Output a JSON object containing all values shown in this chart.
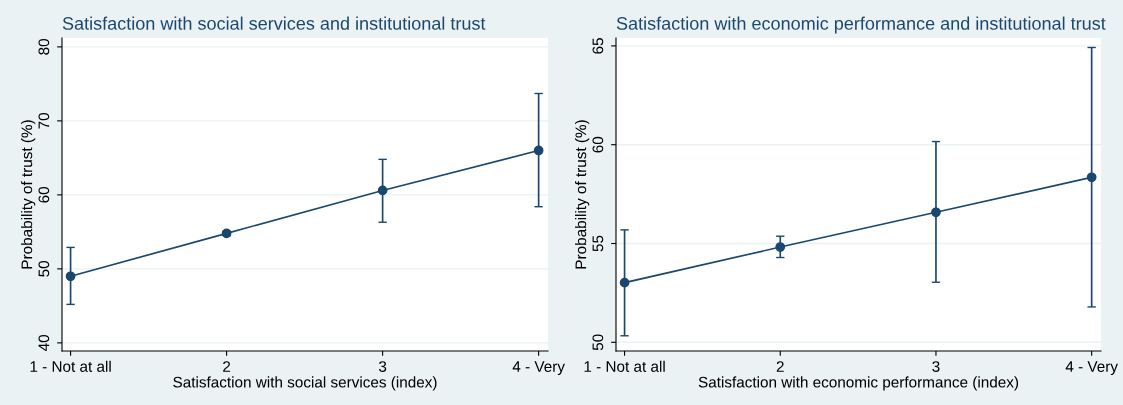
{
  "chart_data": [
    {
      "type": "line",
      "title": "Satisfaction with social services and institutional trust",
      "xlabel": "Satisfaction with social services (index)",
      "ylabel": "Probability of trust (%)",
      "categories": [
        "1 - Not at all",
        "2",
        "3",
        "4 - Very"
      ],
      "series": [
        {
          "color": "#1a476f",
          "values": [
            49.0,
            54.8,
            60.6,
            66.0
          ],
          "errors": [
            [
              45.2,
              52.9
            ],
            [
              54.5,
              55.1
            ],
            [
              56.3,
              64.8
            ],
            [
              58.4,
              73.7
            ]
          ]
        }
      ],
      "ylim": [
        38.9,
        81.2
      ],
      "yticks": [
        40,
        50,
        60,
        70,
        80
      ],
      "grid": "y",
      "marker": "circle",
      "line_style": "solid"
    },
    {
      "type": "line",
      "title": "Satisfaction with economic performance and institutional trust",
      "xlabel": "Satisfaction with economic performance (index)",
      "ylabel": "Probability of trust (%)",
      "categories": [
        "1 - Not at all",
        "2",
        "3",
        "4 - Very"
      ],
      "series": [
        {
          "color": "#1a476f",
          "values": [
            53.02,
            54.82,
            56.58,
            58.35
          ],
          "errors": [
            [
              50.33,
              55.69
            ],
            [
              54.29,
              55.37
            ],
            [
              53.04,
              60.16
            ],
            [
              51.79,
              64.92
            ]
          ]
        }
      ],
      "ylim": [
        49.56,
        65.4
      ],
      "yticks": [
        50,
        55,
        60,
        65
      ],
      "grid": "y",
      "marker": "circle",
      "line_style": "solid"
    }
  ]
}
